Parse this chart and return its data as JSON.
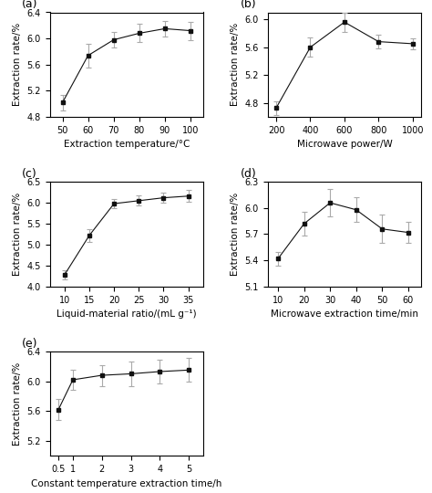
{
  "subplots": [
    {
      "label": "(a)",
      "x": [
        50,
        60,
        70,
        80,
        90,
        100
      ],
      "y": [
        5.02,
        5.74,
        5.98,
        6.08,
        6.15,
        6.12
      ],
      "yerr": [
        0.12,
        0.18,
        0.12,
        0.14,
        0.12,
        0.14
      ],
      "xlabel": "Extraction temperature/°C",
      "ylabel": "Extraction rate/%",
      "xlim": [
        45,
        105
      ],
      "ylim": [
        4.8,
        6.4
      ],
      "xticks": [
        50,
        60,
        70,
        80,
        90,
        100
      ],
      "yticks": [
        4.8,
        5.2,
        5.6,
        6.0,
        6.4
      ],
      "ytick_labels": [
        "4.8",
        "5.2",
        "5.6",
        "6.0",
        "6.4"
      ]
    },
    {
      "label": "(b)",
      "x": [
        200,
        400,
        600,
        800,
        1000
      ],
      "y": [
        4.73,
        5.6,
        5.96,
        5.68,
        5.65
      ],
      "yerr": [
        0.1,
        0.14,
        0.14,
        0.1,
        0.08
      ],
      "xlabel": "Microwave power/W",
      "ylabel": "Extraction rate/%",
      "xlim": [
        150,
        1050
      ],
      "ylim": [
        4.6,
        6.1
      ],
      "xticks": [
        200,
        400,
        600,
        800,
        1000
      ],
      "yticks": [
        4.8,
        5.2,
        5.6,
        6.0
      ],
      "ytick_labels": [
        "4.8",
        "5.2",
        "5.6",
        "6.0"
      ]
    },
    {
      "label": "(c)",
      "x": [
        10,
        15,
        20,
        25,
        30,
        35
      ],
      "y": [
        4.28,
        5.22,
        5.98,
        6.05,
        6.12,
        6.16
      ],
      "yerr": [
        0.1,
        0.15,
        0.1,
        0.12,
        0.12,
        0.14
      ],
      "xlabel": "Liquid-material ratio/(mL g⁻¹)",
      "ylabel": "Extraction rate/%",
      "xlim": [
        7,
        38
      ],
      "ylim": [
        4.0,
        6.5
      ],
      "xticks": [
        10,
        15,
        20,
        25,
        30,
        35
      ],
      "yticks": [
        4.0,
        4.5,
        5.0,
        5.5,
        6.0,
        6.5
      ],
      "ytick_labels": [
        "4.0",
        "4.5",
        "5.0",
        "5.5",
        "6.0",
        "6.5"
      ]
    },
    {
      "label": "(d)",
      "x": [
        10,
        20,
        30,
        40,
        50,
        60
      ],
      "y": [
        5.42,
        5.82,
        6.06,
        5.98,
        5.76,
        5.72
      ],
      "yerr": [
        0.08,
        0.14,
        0.16,
        0.14,
        0.16,
        0.12
      ],
      "xlabel": "Microwave extraction time/min",
      "ylabel": "Extraction rate/%",
      "xlim": [
        6,
        65
      ],
      "ylim": [
        5.1,
        6.3
      ],
      "xticks": [
        10,
        20,
        30,
        40,
        50,
        60
      ],
      "yticks": [
        5.1,
        5.4,
        5.7,
        6.0,
        6.3
      ],
      "ytick_labels": [
        "5.1",
        "5.4",
        "5.7",
        "6.0",
        "6.3"
      ]
    },
    {
      "label": "(e)",
      "x": [
        0.5,
        1,
        2,
        3,
        4,
        5
      ],
      "y": [
        5.62,
        6.02,
        6.08,
        6.1,
        6.13,
        6.15
      ],
      "yerr": [
        0.14,
        0.13,
        0.14,
        0.16,
        0.16,
        0.16
      ],
      "xlabel": "Constant temperature extraction time/h",
      "ylabel": "Extraction rate/%",
      "xlim": [
        0.2,
        5.5
      ],
      "ylim": [
        5.0,
        6.4
      ],
      "xticks": [
        0.5,
        1,
        2,
        3,
        4,
        5
      ],
      "xtick_labels": [
        "0.5",
        "1",
        "2",
        "3",
        "4",
        "5"
      ],
      "yticks": [
        5.2,
        5.6,
        6.0,
        6.4
      ],
      "ytick_labels": [
        "5.2",
        "5.6",
        "6.0",
        "6.4"
      ]
    }
  ],
  "line_color": "#aaaaaa",
  "marker": "s",
  "marker_color": "#111111",
  "marker_size": 3.5,
  "label_fontsize": 7.5,
  "tick_fontsize": 7,
  "panel_label_fontsize": 9
}
